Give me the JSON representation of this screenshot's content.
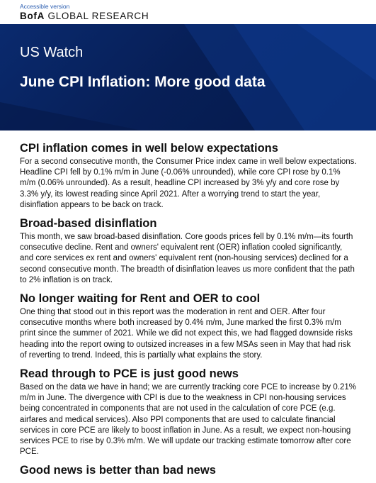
{
  "header": {
    "accessible_link": "Accessible version",
    "brand_bold": "BofA",
    "brand_rest": " GLOBAL RESEARCH"
  },
  "banner": {
    "series": "US Watch",
    "headline": "June CPI Inflation: More good data",
    "background_color": "#0a2a6e"
  },
  "sections": [
    {
      "heading": "CPI inflation comes in well below expectations",
      "body": "For a second consecutive month, the Consumer Price index came in well below expectations. Headline CPI fell by 0.1% m/m in June (-0.06% unrounded), while core CPI rose by 0.1% m/m (0.06% unrounded). As a result, headline CPI increased by 3% y/y and core rose by 3.3% y/y, its lowest reading since April 2021. After a worrying trend to start the year, disinflation appears to be back on track."
    },
    {
      "heading": "Broad-based disinflation",
      "body": "This month, we saw broad-based disinflation. Core goods prices fell by 0.1% m/m—its fourth consecutive decline. Rent and owners' equivalent rent (OER) inflation cooled significantly, and core services ex rent and owners' equivalent rent (non-housing services) declined for a second consecutive month. The breadth of disinflation leaves us more confident that the path to 2% inflation is on track."
    },
    {
      "heading": "No longer waiting for Rent and OER to cool",
      "body": "One thing that stood out in this report was the moderation in rent and OER. After four consecutive months where both increased by 0.4% m/m, June marked the first 0.3% m/m print since the summer of 2021. While we did not expect this, we had flagged downside risks heading into the report owing to outsized increases in a few MSAs seen in May that had risk of reverting to trend. Indeed, this is partially what explains the story."
    },
    {
      "heading": "Read through to PCE is just good news",
      "body": "Based on the data we have in hand; we are currently tracking core PCE to increase by 0.21% m/m in June. The divergence with CPI is due to the weakness in CPI non-housing services being concentrated in components that are not used in the calculation of core PCE (e.g. airfares and medical services). Also PPI components that are used to calculate financial services in core PCE are likely to boost inflation in June. As a result, we expect non-housing services PCE to rise by 0.3% m/m. We will update our tracking estimate tomorrow after core PCE."
    },
    {
      "heading": "Good news is better than bad news",
      "body": ""
    }
  ]
}
